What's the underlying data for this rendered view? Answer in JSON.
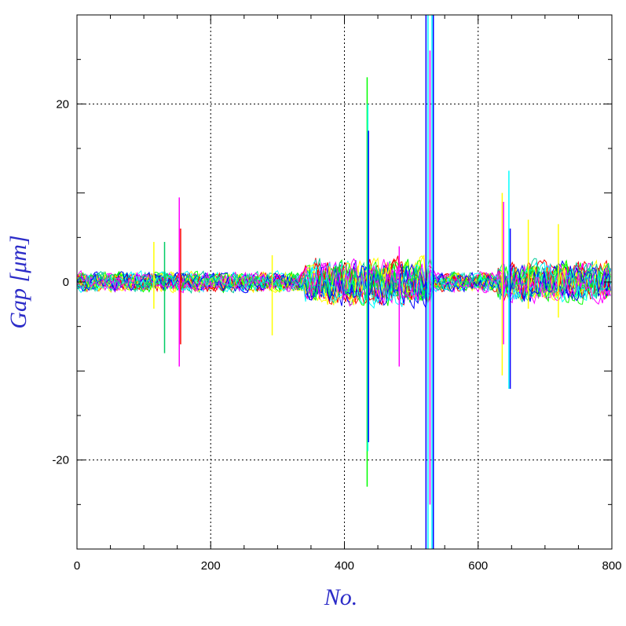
{
  "chart_data": {
    "type": "line",
    "title": "",
    "xlabel": "No.",
    "ylabel": "Gap [μm]",
    "xlim": [
      0,
      800
    ],
    "ylim": [
      -30,
      30
    ],
    "xticks": [
      0,
      200,
      400,
      600,
      800
    ],
    "yticks": [
      -20,
      0,
      20
    ],
    "xtick_labels": [
      "0",
      "200",
      "400",
      "600",
      "800"
    ],
    "ytick_labels": [
      "-20",
      "0",
      "20"
    ],
    "grid": true,
    "legend": "none",
    "series_colors": [
      "#ff0000",
      "#ffff00",
      "#00ff00",
      "#00ffff",
      "#0000ff",
      "#ff00ff",
      "#00cc99"
    ],
    "baseline_noise_amplitude": 1.5,
    "noisy_regions": [
      {
        "x_range": [
          340,
          530
        ],
        "amplitude": 3.5
      },
      {
        "x_range": [
          630,
          800
        ],
        "amplitude": 3.0
      }
    ],
    "spikes": [
      {
        "x": 115,
        "y_min": -3,
        "y_max": 4.5,
        "color": "#ffff00"
      },
      {
        "x": 131,
        "y_min": -8,
        "y_max": 4.5,
        "color": "#00cc66"
      },
      {
        "x": 153,
        "y_min": -9.5,
        "y_max": 9.5,
        "color": "#ff00ff"
      },
      {
        "x": 155,
        "y_min": -7,
        "y_max": 6,
        "color": "#ff0000"
      },
      {
        "x": 292,
        "y_min": -6,
        "y_max": 3,
        "color": "#ffff00"
      },
      {
        "x": 434,
        "y_min": -23,
        "y_max": 23,
        "color": "#00ff00"
      },
      {
        "x": 435,
        "y_min": -19,
        "y_max": 20,
        "color": "#00ffff"
      },
      {
        "x": 436,
        "y_min": -18,
        "y_max": 17,
        "color": "#0000ff"
      },
      {
        "x": 482,
        "y_min": -9.5,
        "y_max": 4,
        "color": "#ff00ff"
      },
      {
        "x": 522,
        "y_min": -30,
        "y_max": 30,
        "color": "#0000ff"
      },
      {
        "x": 525,
        "y_min": -30,
        "y_max": 30,
        "color": "#00ffff"
      },
      {
        "x": 528,
        "y_min": -25,
        "y_max": 26,
        "color": "#ff00ff"
      },
      {
        "x": 531,
        "y_min": -30,
        "y_max": 30,
        "color": "#00ffff"
      },
      {
        "x": 533,
        "y_min": -30,
        "y_max": 30,
        "color": "#0000ff"
      },
      {
        "x": 636,
        "y_min": -10.5,
        "y_max": 10,
        "color": "#ffff00"
      },
      {
        "x": 638,
        "y_min": -7,
        "y_max": 9,
        "color": "#ff00ff"
      },
      {
        "x": 646,
        "y_min": -12,
        "y_max": 12.5,
        "color": "#00ffff"
      },
      {
        "x": 648,
        "y_min": -12,
        "y_max": 6,
        "color": "#0000ff"
      },
      {
        "x": 675,
        "y_min": -3,
        "y_max": 7,
        "color": "#ffff00"
      },
      {
        "x": 720,
        "y_min": -4,
        "y_max": 6.5,
        "color": "#ffff00"
      }
    ]
  }
}
